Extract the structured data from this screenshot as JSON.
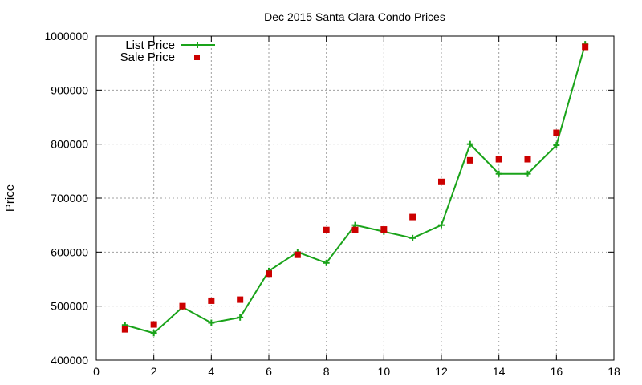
{
  "chart_data": {
    "type": "line",
    "title": "Dec 2015 Santa Clara Condo Prices",
    "xlabel": "",
    "ylabel": "Price",
    "xlim": [
      0,
      18
    ],
    "ylim": [
      400000,
      1000000
    ],
    "xticks": [
      0,
      2,
      4,
      6,
      8,
      10,
      12,
      14,
      16,
      18
    ],
    "yticks": [
      400000,
      500000,
      600000,
      700000,
      800000,
      900000,
      1000000
    ],
    "grid": true,
    "legend_position": "top-left",
    "x": [
      1,
      2,
      3,
      4,
      5,
      6,
      7,
      8,
      9,
      10,
      11,
      12,
      13,
      14,
      15,
      16,
      17
    ],
    "series": [
      {
        "name": "List Price",
        "style": "line-with-plus-markers",
        "color": "#1aa31a",
        "values": [
          465000,
          450000,
          498000,
          469000,
          479000,
          565000,
          600000,
          580000,
          650000,
          638000,
          626000,
          650000,
          800000,
          745000,
          745000,
          798000,
          985000
        ]
      },
      {
        "name": "Sale Price",
        "style": "square-markers",
        "color": "#cc0000",
        "values": [
          457000,
          466000,
          500000,
          510000,
          512000,
          560000,
          595000,
          641000,
          641000,
          642000,
          665000,
          730000,
          770000,
          772000,
          772000,
          821000,
          980000
        ]
      }
    ]
  }
}
